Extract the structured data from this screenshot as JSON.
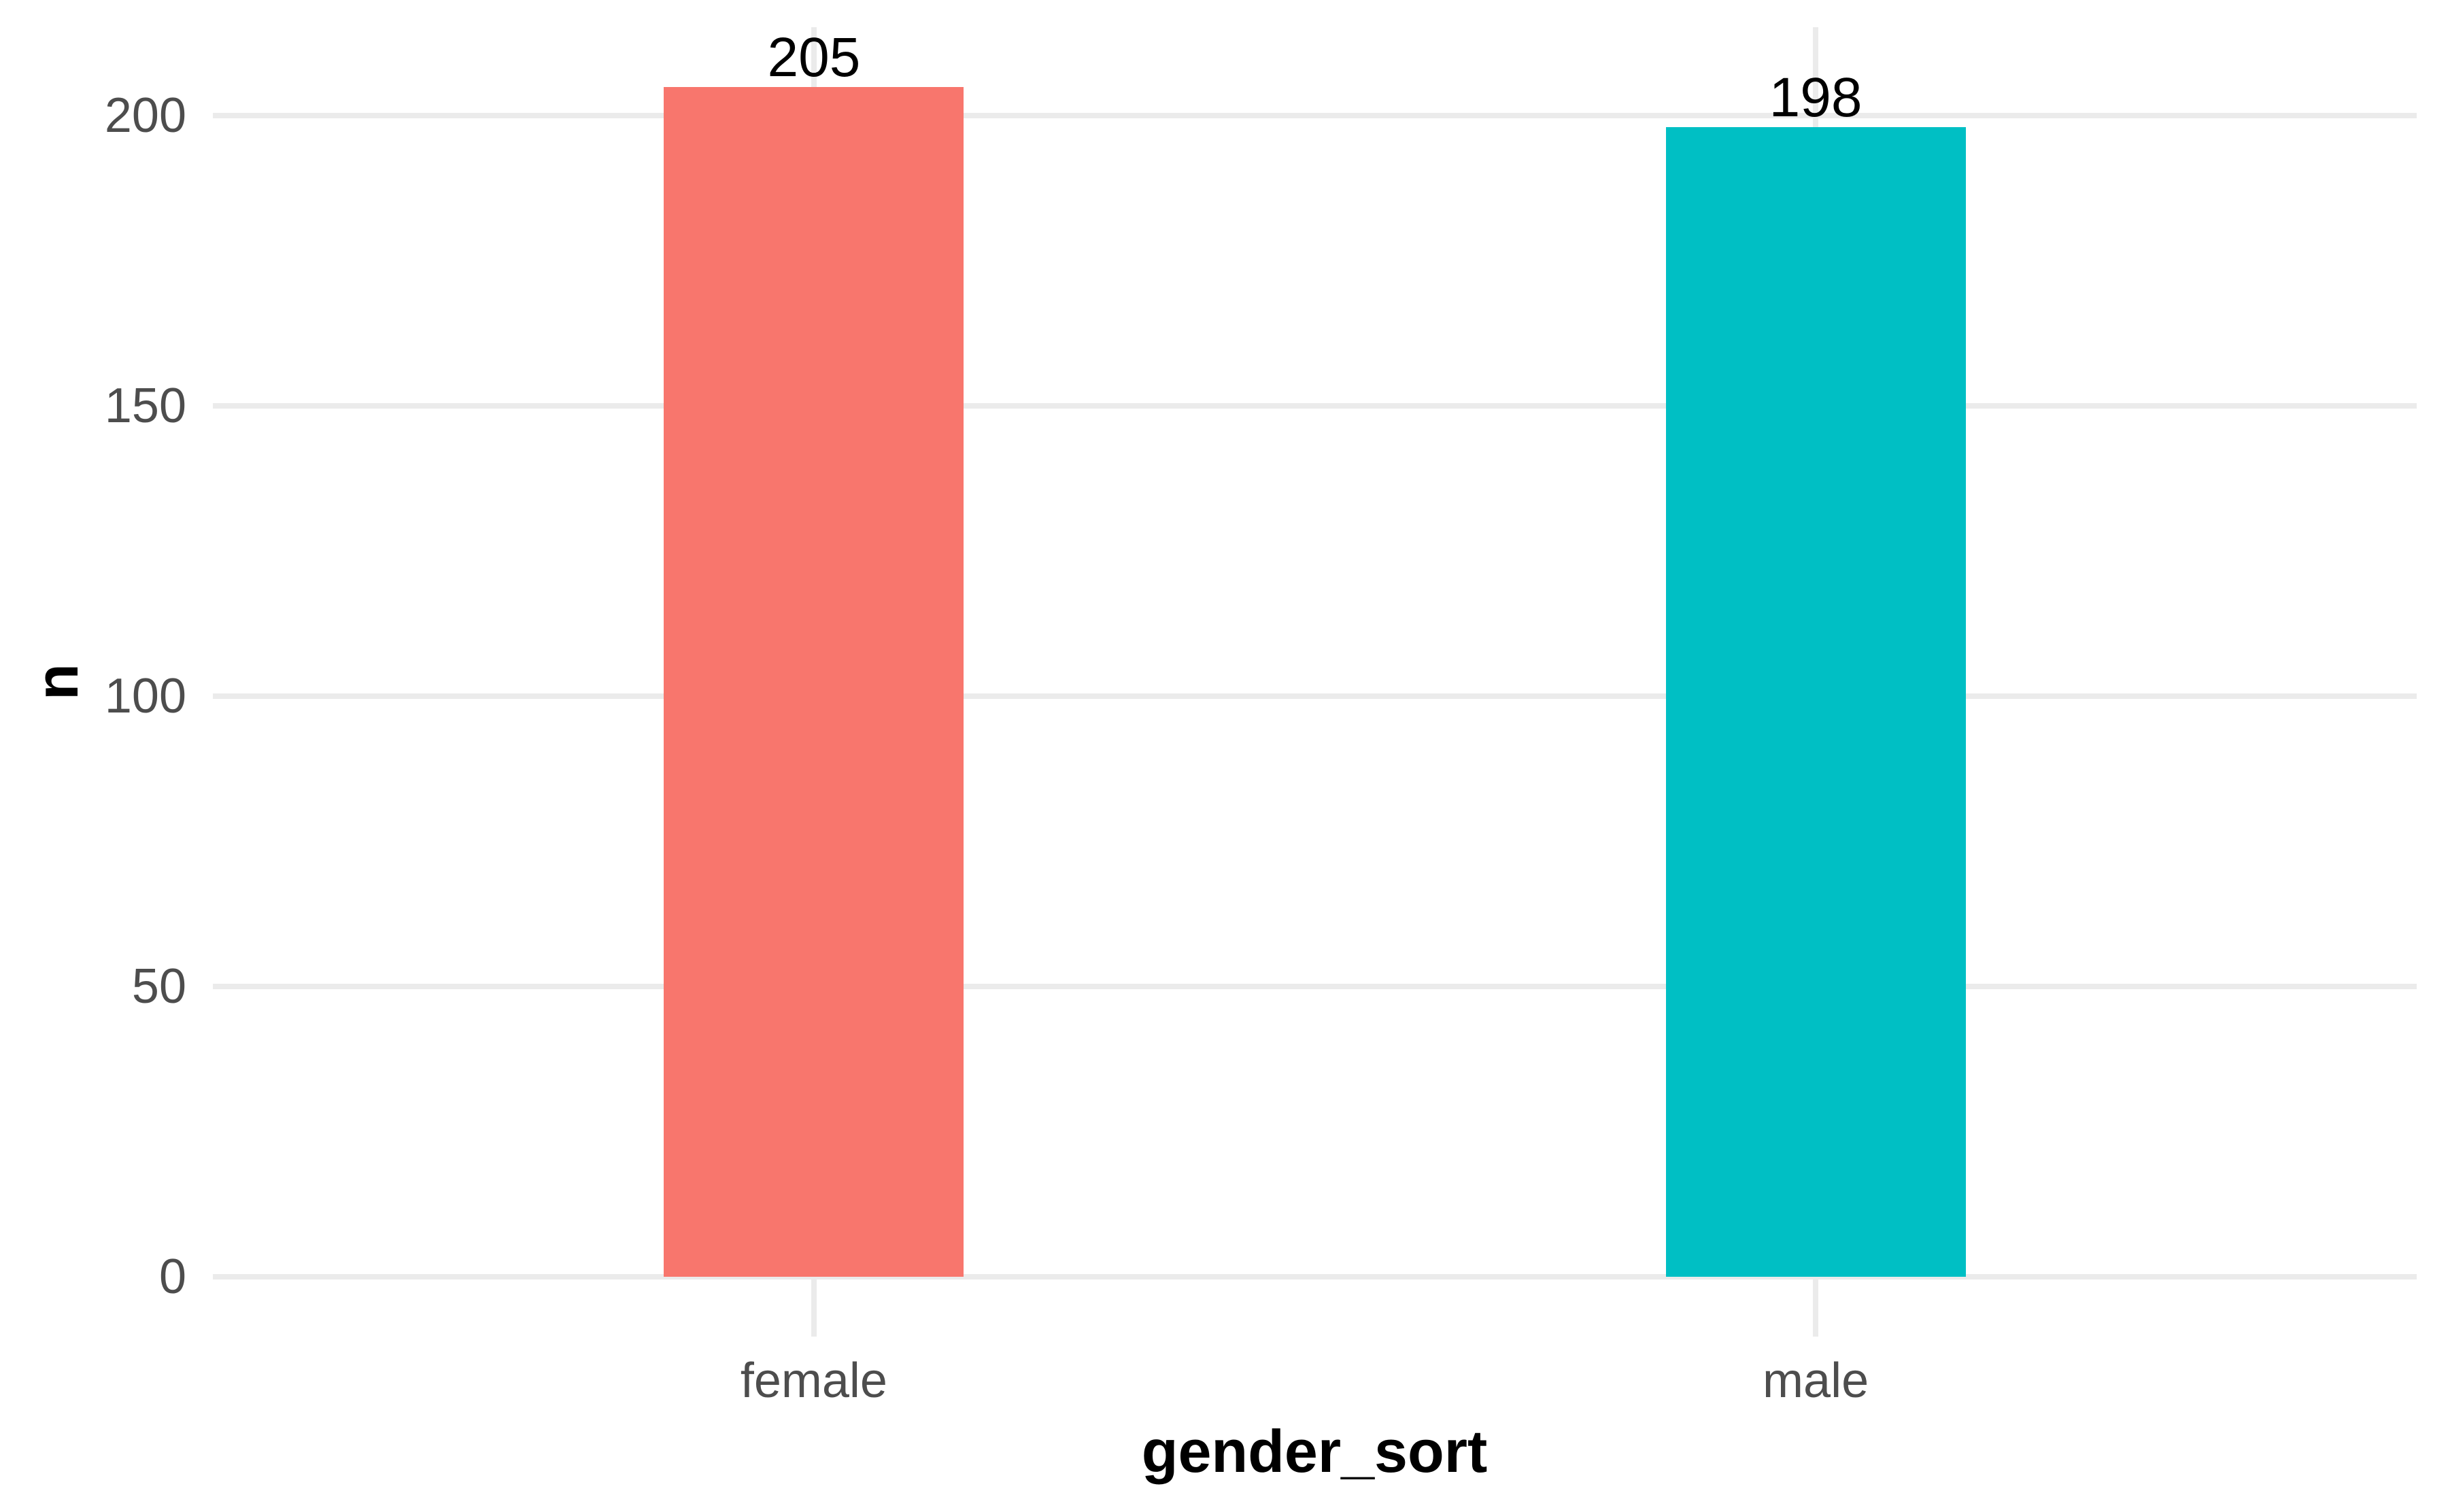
{
  "chart_data": {
    "type": "bar",
    "orientation": "vertical",
    "categories": [
      "female",
      "male"
    ],
    "values": [
      205,
      198
    ],
    "value_labels": [
      "205",
      "198"
    ],
    "bar_colors": [
      "#F8766D",
      "#00BFC4"
    ],
    "title": "",
    "xlabel": "gender_sort",
    "ylabel": "n",
    "y_ticks": [
      0,
      50,
      100,
      150,
      200
    ],
    "y_tick_labels": [
      "0",
      "50",
      "100",
      "150",
      "200"
    ],
    "ylim": [
      -10.25,
      215.25
    ],
    "grid": "major horizontal lines at y ticks and vertical lines at category centers",
    "grid_color": "#EBEBEB",
    "axis_text_color": "#4D4D4D",
    "axis_title_color": "#000000",
    "value_label_color": "#000000",
    "background_color": "#FFFFFF",
    "legend": "none"
  }
}
